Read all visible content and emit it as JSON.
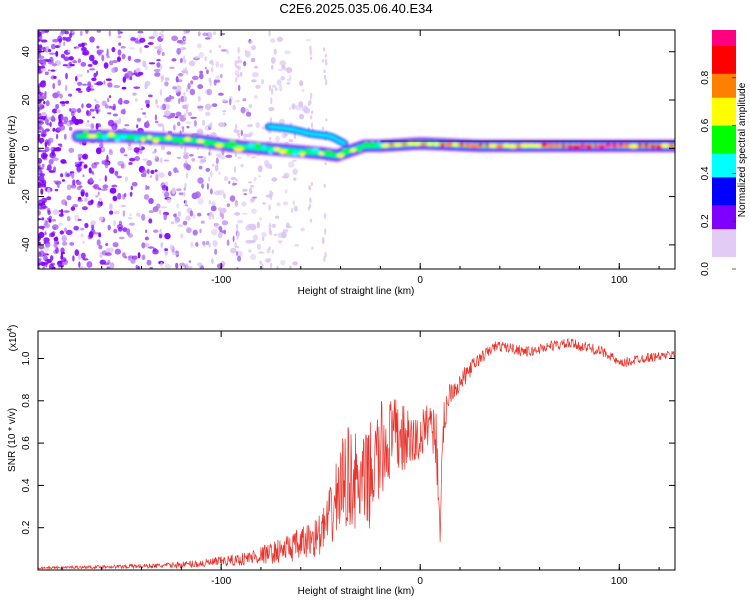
{
  "title": "C2E6.2025.035.06.40.E34",
  "chart_data": [
    {
      "type": "heatmap",
      "name": "spectrogram",
      "xlabel": "Height of straight line (km)",
      "ylabel": "Frequency (Hz)",
      "xlim": [
        -192,
        128
      ],
      "ylim": [
        -50,
        49
      ],
      "xticks": [
        -100,
        0,
        100
      ],
      "yticks": [
        -40,
        -20,
        0,
        20,
        40
      ],
      "grid": false,
      "reference_line_y": 3,
      "ridge": [
        {
          "x": -170,
          "y": 5
        },
        {
          "x": -150,
          "y": 5
        },
        {
          "x": -130,
          "y": 4
        },
        {
          "x": -110,
          "y": 3
        },
        {
          "x": -95,
          "y": 1
        },
        {
          "x": -80,
          "y": 0
        },
        {
          "x": -65,
          "y": -1
        },
        {
          "x": -50,
          "y": -2
        },
        {
          "x": -42,
          "y": -3
        },
        {
          "x": -35,
          "y": -1
        },
        {
          "x": -28,
          "y": 1
        },
        {
          "x": -20,
          "y": 1
        },
        {
          "x": 0,
          "y": 2
        },
        {
          "x": 30,
          "y": 1
        },
        {
          "x": 60,
          "y": 1
        },
        {
          "x": 90,
          "y": 1
        },
        {
          "x": 128,
          "y": 1
        }
      ],
      "secondary_ridge": [
        {
          "x": -76,
          "y": 9
        },
        {
          "x": -65,
          "y": 8
        },
        {
          "x": -55,
          "y": 6
        },
        {
          "x": -45,
          "y": 5
        },
        {
          "x": -38,
          "y": 2
        }
      ],
      "colorbar": {
        "label": "Normalized spectral amplitude",
        "range": [
          0,
          1
        ],
        "ticks": [
          "0.0",
          "0.2",
          "0.4",
          "0.6",
          "0.8"
        ],
        "colors": [
          "#ffffff",
          "#e2ccf5",
          "#7f00ff",
          "#0000ff",
          "#00ffff",
          "#00ff00",
          "#ffff00",
          "#ff8000",
          "#ff0000",
          "#ff0080"
        ]
      }
    },
    {
      "type": "line",
      "name": "snr",
      "xlabel": "Height of straight line (km)",
      "ylabel": "SNR (10 * v/v)",
      "y_multiplier_label": "(x10",
      "y_multiplier_exp": "4",
      "xlim": [
        -192,
        128
      ],
      "ylim": [
        0,
        1.13
      ],
      "xticks": [
        -100,
        0,
        100
      ],
      "yticks": [
        "0.2",
        "0.4",
        "0.6",
        "0.8",
        "1.0"
      ],
      "grid": false,
      "color": "#e8332b",
      "x": [
        -192,
        -160,
        -130,
        -110,
        -90,
        -75,
        -60,
        -50,
        -45,
        -40,
        -35,
        -30,
        -25,
        -20,
        -15,
        -10,
        -5,
        0,
        5,
        8,
        10,
        12,
        15,
        20,
        25,
        30,
        38,
        45,
        55,
        65,
        75,
        85,
        95,
        100,
        110,
        120,
        128
      ],
      "y": [
        0.01,
        0.015,
        0.02,
        0.03,
        0.05,
        0.08,
        0.12,
        0.17,
        0.25,
        0.4,
        0.45,
        0.38,
        0.45,
        0.55,
        0.62,
        0.63,
        0.6,
        0.62,
        0.72,
        0.62,
        0.22,
        0.72,
        0.85,
        0.88,
        0.95,
        1.0,
        1.06,
        1.05,
        1.03,
        1.06,
        1.07,
        1.05,
        1.02,
        0.97,
        1.0,
        1.01,
        1.02
      ],
      "noise": [
        0.005,
        0.008,
        0.012,
        0.02,
        0.03,
        0.05,
        0.08,
        0.1,
        0.15,
        0.22,
        0.25,
        0.22,
        0.25,
        0.25,
        0.2,
        0.18,
        0.14,
        0.12,
        0.1,
        0.15,
        0.1,
        0.1,
        0.06,
        0.05,
        0.04,
        0.03,
        0.025,
        0.025,
        0.025,
        0.025,
        0.025,
        0.025,
        0.025,
        0.025,
        0.025,
        0.02,
        0.02
      ]
    }
  ]
}
